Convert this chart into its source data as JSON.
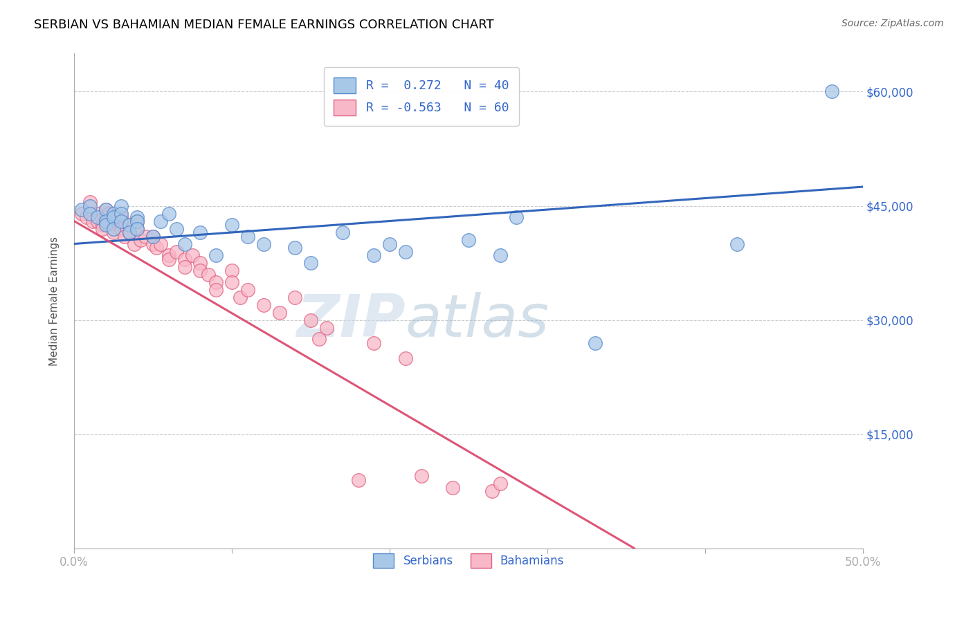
{
  "title": "SERBIAN VS BAHAMIAN MEDIAN FEMALE EARNINGS CORRELATION CHART",
  "source": "Source: ZipAtlas.com",
  "ylabel": "Median Female Earnings",
  "xlim": [
    0.0,
    0.5
  ],
  "ylim": [
    0,
    65000
  ],
  "yticks": [
    0,
    15000,
    30000,
    45000,
    60000
  ],
  "ytick_labels": [
    "",
    "$15,000",
    "$30,000",
    "$45,000",
    "$60,000"
  ],
  "xticks": [
    0.0,
    0.1,
    0.2,
    0.3,
    0.4,
    0.5
  ],
  "xtick_labels": [
    "0.0%",
    "",
    "",
    "",
    "",
    "50.0%"
  ],
  "blue_R": 0.272,
  "blue_N": 40,
  "pink_R": -0.563,
  "pink_N": 60,
  "blue_color": "#a8c8e8",
  "pink_color": "#f8b8c8",
  "blue_edge_color": "#5588cc",
  "pink_edge_color": "#e06080",
  "blue_line_color": "#3366bb",
  "pink_line_color": "#dd5577",
  "legend_blue_label": "Serbians",
  "legend_pink_label": "Bahamians",
  "watermark_zip": "ZIP",
  "watermark_atlas": "atlas",
  "blue_line_x0": 0.0,
  "blue_line_y0": 40000,
  "blue_line_x1": 0.5,
  "blue_line_y1": 47500,
  "pink_line_x0": 0.0,
  "pink_line_y0": 43000,
  "pink_line_x1": 0.355,
  "pink_line_y1": 0,
  "blue_scatter_x": [
    0.005,
    0.01,
    0.01,
    0.015,
    0.02,
    0.02,
    0.02,
    0.025,
    0.025,
    0.025,
    0.03,
    0.03,
    0.03,
    0.035,
    0.035,
    0.04,
    0.04,
    0.04,
    0.05,
    0.055,
    0.06,
    0.065,
    0.07,
    0.08,
    0.09,
    0.1,
    0.11,
    0.12,
    0.14,
    0.15,
    0.17,
    0.19,
    0.2,
    0.21,
    0.25,
    0.27,
    0.28,
    0.33,
    0.42,
    0.48
  ],
  "blue_scatter_y": [
    44500,
    45000,
    44000,
    43500,
    44500,
    43000,
    42500,
    44000,
    43500,
    42000,
    45000,
    44000,
    43000,
    42500,
    41500,
    43500,
    43000,
    42000,
    41000,
    43000,
    44000,
    42000,
    40000,
    41500,
    38500,
    42500,
    41000,
    40000,
    39500,
    37500,
    41500,
    38500,
    40000,
    39000,
    40500,
    38500,
    43500,
    27000,
    40000,
    60000
  ],
  "pink_scatter_x": [
    0.005,
    0.008,
    0.01,
    0.012,
    0.015,
    0.015,
    0.018,
    0.018,
    0.02,
    0.02,
    0.02,
    0.022,
    0.022,
    0.025,
    0.025,
    0.025,
    0.028,
    0.03,
    0.03,
    0.03,
    0.032,
    0.035,
    0.035,
    0.038,
    0.04,
    0.04,
    0.042,
    0.045,
    0.05,
    0.05,
    0.052,
    0.055,
    0.06,
    0.06,
    0.065,
    0.07,
    0.07,
    0.075,
    0.08,
    0.08,
    0.085,
    0.09,
    0.09,
    0.1,
    0.1,
    0.105,
    0.11,
    0.12,
    0.13,
    0.14,
    0.15,
    0.155,
    0.16,
    0.18,
    0.19,
    0.21,
    0.22,
    0.24,
    0.265,
    0.27
  ],
  "pink_scatter_y": [
    44000,
    43500,
    45500,
    43000,
    44000,
    43000,
    42500,
    42000,
    44500,
    43500,
    43000,
    44000,
    42500,
    43000,
    42000,
    41500,
    43500,
    43500,
    42500,
    42000,
    41000,
    42500,
    41500,
    40000,
    43000,
    42000,
    40500,
    41000,
    41000,
    40000,
    39500,
    40000,
    38500,
    38000,
    39000,
    38000,
    37000,
    38500,
    37500,
    36500,
    36000,
    35000,
    34000,
    36500,
    35000,
    33000,
    34000,
    32000,
    31000,
    33000,
    30000,
    27500,
    29000,
    9000,
    27000,
    25000,
    9500,
    8000,
    7500,
    8500
  ]
}
